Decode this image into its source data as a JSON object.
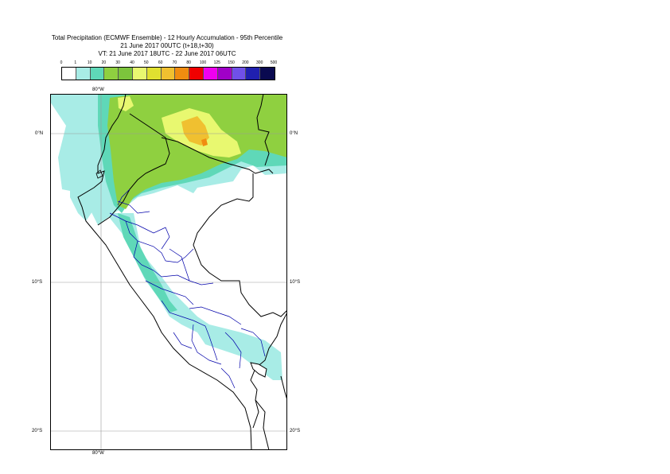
{
  "title": {
    "line1": "Total Precipitation (ECMWF Ensemble) - 12 Hourly Accumulation - 95th Percentile",
    "line2": "21 June 2017 00UTC (t+18,t+30)",
    "line3": "VT: 21 June 2017 18UTC - 22 June 2017 06UTC"
  },
  "legend": {
    "labels": [
      "0",
      "1",
      "10",
      "20",
      "30",
      "40",
      "50",
      "60",
      "70",
      "80",
      "100",
      "125",
      "150",
      "200",
      "300",
      "500"
    ],
    "colors": [
      "#ffffff",
      "#a8ece6",
      "#5fd8b8",
      "#8fd040",
      "#7cc43c",
      "#e8f870",
      "#e0e030",
      "#f0c030",
      "#f08c10",
      "#f00000",
      "#f000f0",
      "#a000c8",
      "#7050e8",
      "#2020b0",
      "#0a0a50"
    ]
  },
  "axes": {
    "lon_top": "80°W",
    "lon_bottom": "80°W",
    "lat_left": [
      "0°N",
      "10°S",
      "20°S"
    ],
    "lat_right": [
      "0°N",
      "10°S",
      "20°S"
    ]
  }
}
